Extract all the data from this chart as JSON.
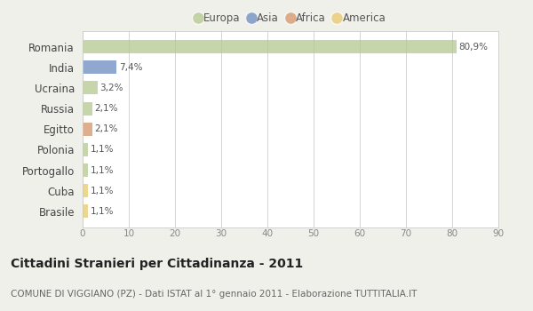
{
  "categories": [
    "Romania",
    "India",
    "Ucraina",
    "Russia",
    "Egitto",
    "Polonia",
    "Portogallo",
    "Cuba",
    "Brasile"
  ],
  "values": [
    80.9,
    7.4,
    3.2,
    2.1,
    2.1,
    1.1,
    1.1,
    1.1,
    1.1
  ],
  "labels": [
    "80,9%",
    "7,4%",
    "3,2%",
    "2,1%",
    "2,1%",
    "1,1%",
    "1,1%",
    "1,1%",
    "1,1%"
  ],
  "colors": [
    "#b5c98e",
    "#6b8abf",
    "#b5c98e",
    "#b5c98e",
    "#d4956a",
    "#b5c98e",
    "#b5c98e",
    "#e8c96a",
    "#e8c96a"
  ],
  "legend_labels": [
    "Europa",
    "Asia",
    "Africa",
    "America"
  ],
  "legend_colors": [
    "#b5c98e",
    "#6b8abf",
    "#d4956a",
    "#e8c96a"
  ],
  "title": "Cittadini Stranieri per Cittadinanza - 2011",
  "subtitle": "COMUNE DI VIGGIANO (PZ) - Dati ISTAT al 1° gennaio 2011 - Elaborazione TUTTITALIA.IT",
  "xlim": [
    0,
    90
  ],
  "xticks": [
    0,
    10,
    20,
    30,
    40,
    50,
    60,
    70,
    80,
    90
  ],
  "background_color": "#f0f0eb",
  "plot_background": "#ffffff",
  "grid_color": "#cccccc",
  "title_fontsize": 10,
  "subtitle_fontsize": 7.5,
  "bar_alpha": 0.75
}
